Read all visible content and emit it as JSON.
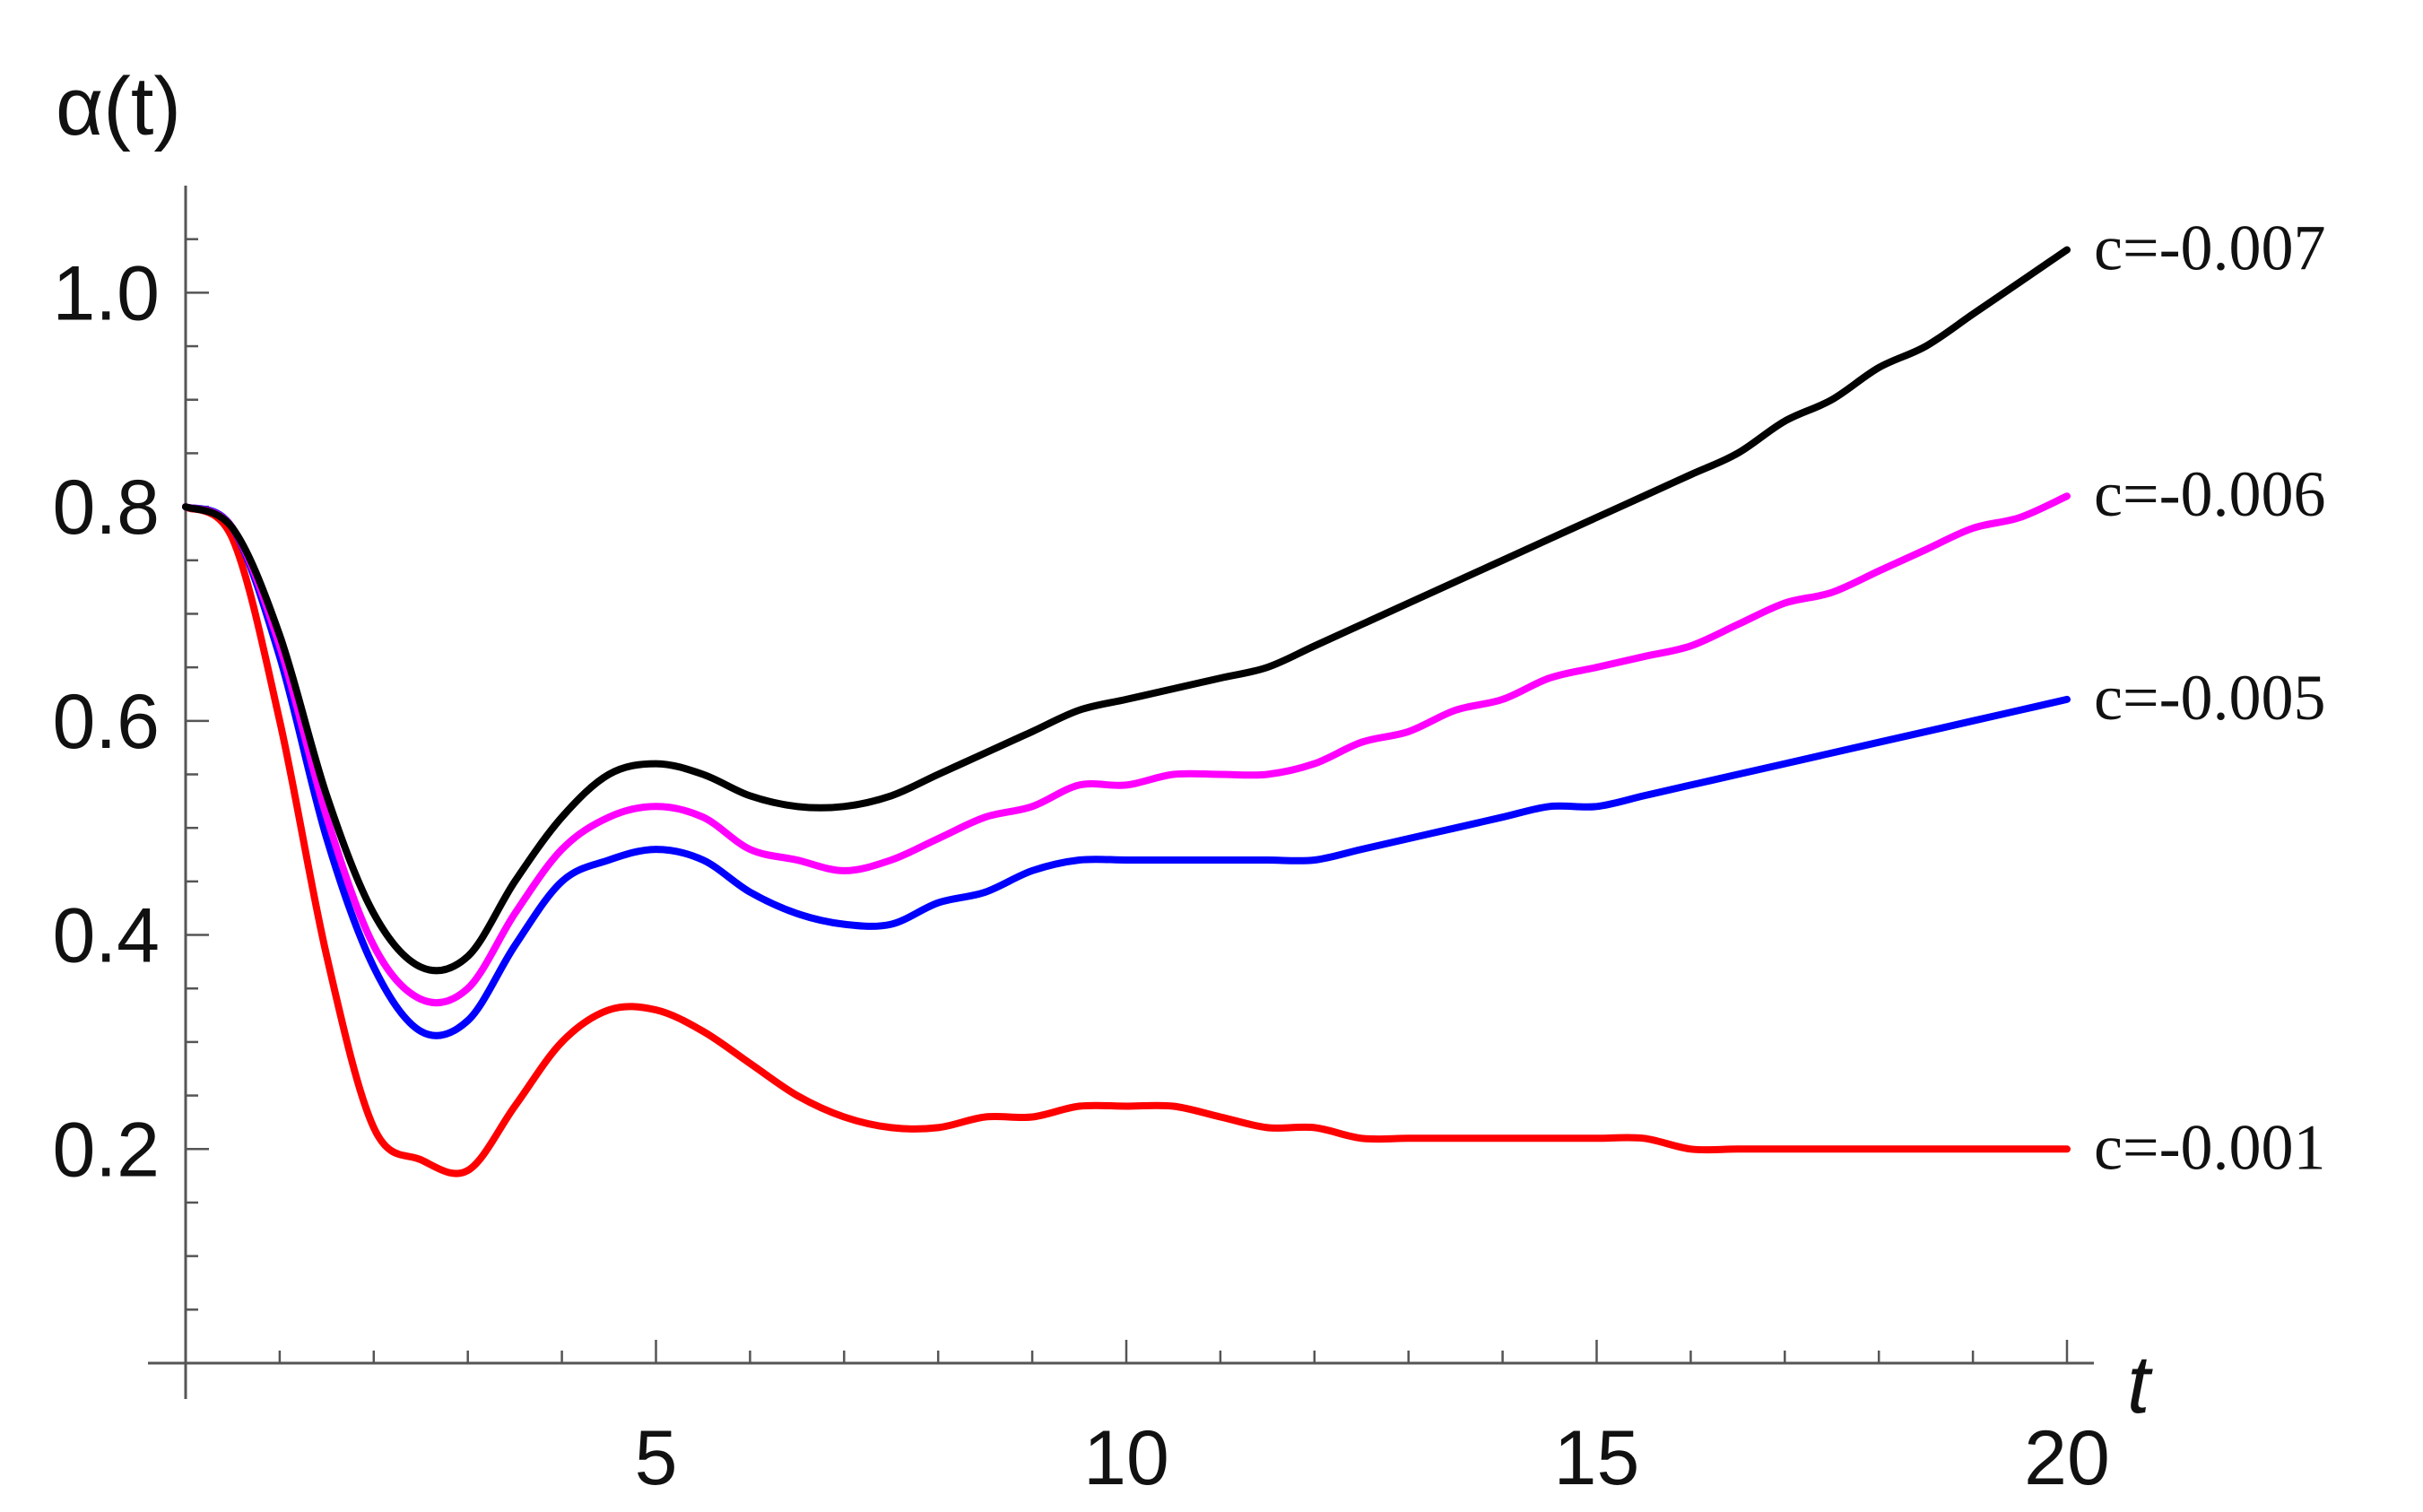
{
  "chart_data": {
    "type": "line",
    "title": "",
    "xlabel": "t",
    "ylabel": "α(t)",
    "xlim": [
      0,
      20
    ],
    "ylim": [
      0,
      1.1
    ],
    "x_ticks": [
      5,
      10,
      15,
      20
    ],
    "y_ticks": [
      0.2,
      0.4,
      0.6,
      0.8,
      1.0
    ],
    "x_tick_labels": [
      "5",
      "10",
      "15",
      "20"
    ],
    "y_tick_labels": [
      "0.2",
      "0.4",
      "0.6",
      "0.8",
      "1.0"
    ],
    "grid": false,
    "legend": "inline labels at right end of each curve",
    "x": [
      0,
      0.5,
      1,
      1.5,
      2,
      2.5,
      3,
      3.5,
      4,
      4.5,
      5,
      5.5,
      6,
      6.5,
      7,
      7.5,
      8,
      8.5,
      9,
      9.5,
      10,
      10.5,
      11,
      11.5,
      12,
      12.5,
      13,
      13.5,
      14,
      14.5,
      15,
      15.5,
      16,
      16.5,
      17,
      17.5,
      18,
      18.5,
      19,
      19.5,
      20
    ],
    "series": [
      {
        "name": "c=-0.007",
        "color": "#000000",
        "values": [
          0.8,
          0.78,
          0.68,
          0.53,
          0.42,
          0.37,
          0.38,
          0.45,
          0.51,
          0.55,
          0.56,
          0.55,
          0.53,
          0.52,
          0.52,
          0.53,
          0.55,
          0.57,
          0.59,
          0.61,
          0.62,
          0.63,
          0.64,
          0.65,
          0.67,
          0.69,
          0.71,
          0.73,
          0.75,
          0.77,
          0.79,
          0.81,
          0.83,
          0.85,
          0.88,
          0.9,
          0.93,
          0.95,
          0.98,
          1.01,
          1.04
        ]
      },
      {
        "name": "c=-0.006",
        "color": "#ff00ff",
        "values": [
          0.8,
          0.78,
          0.67,
          0.51,
          0.39,
          0.34,
          0.35,
          0.42,
          0.48,
          0.51,
          0.52,
          0.51,
          0.48,
          0.47,
          0.46,
          0.47,
          0.49,
          0.51,
          0.52,
          0.54,
          0.54,
          0.55,
          0.55,
          0.55,
          0.56,
          0.58,
          0.59,
          0.61,
          0.62,
          0.64,
          0.65,
          0.66,
          0.67,
          0.69,
          0.71,
          0.72,
          0.74,
          0.76,
          0.78,
          0.79,
          0.81
        ]
      },
      {
        "name": "c=-0.005",
        "color": "#0000ff",
        "values": [
          0.8,
          0.78,
          0.66,
          0.49,
          0.37,
          0.31,
          0.32,
          0.39,
          0.45,
          0.47,
          0.48,
          0.47,
          0.44,
          0.42,
          0.41,
          0.41,
          0.43,
          0.44,
          0.46,
          0.47,
          0.47,
          0.47,
          0.47,
          0.47,
          0.47,
          0.48,
          0.49,
          0.5,
          0.51,
          0.52,
          0.52,
          0.53,
          0.54,
          0.55,
          0.56,
          0.57,
          0.58,
          0.59,
          0.6,
          0.61,
          0.62
        ]
      },
      {
        "name": "c=-0.001",
        "color": "#ff0000",
        "values": [
          0.8,
          0.77,
          0.6,
          0.38,
          0.22,
          0.19,
          0.18,
          0.24,
          0.3,
          0.33,
          0.33,
          0.31,
          0.28,
          0.25,
          0.23,
          0.22,
          0.22,
          0.23,
          0.23,
          0.24,
          0.24,
          0.24,
          0.23,
          0.22,
          0.22,
          0.21,
          0.21,
          0.21,
          0.21,
          0.21,
          0.21,
          0.21,
          0.2,
          0.2,
          0.2,
          0.2,
          0.2,
          0.2,
          0.2,
          0.2,
          0.2
        ]
      }
    ]
  }
}
